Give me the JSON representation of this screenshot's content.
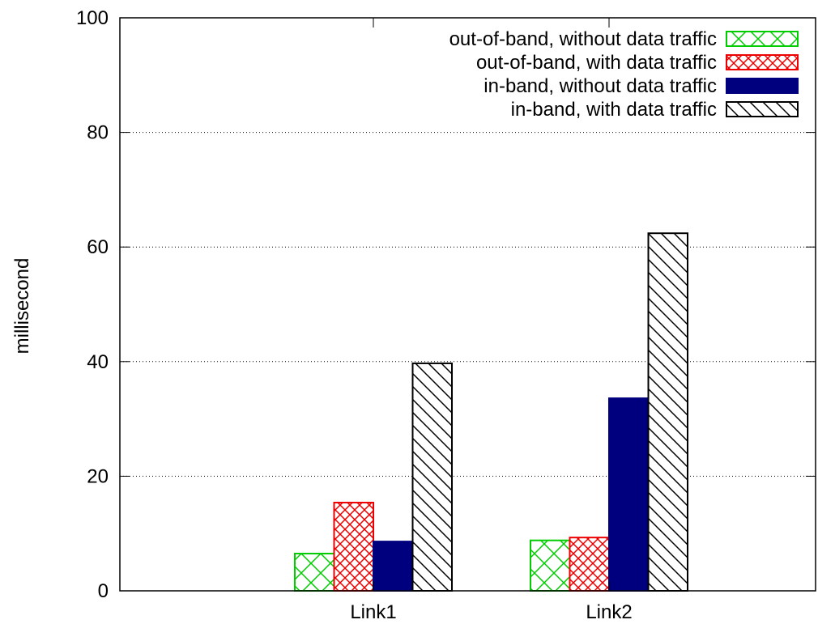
{
  "chart_data": {
    "type": "bar",
    "title": "",
    "xlabel": "",
    "ylabel": "millisecond",
    "ylim": [
      0,
      100
    ],
    "yticks": [
      0,
      20,
      40,
      60,
      80,
      100
    ],
    "grid": "horizontal dotted",
    "legend_position": "top-right",
    "categories": [
      "Link1",
      "Link2"
    ],
    "series": [
      {
        "name": "out-of-band, without data traffic",
        "values": [
          6.5,
          8.8
        ],
        "color": "#00cc00",
        "pattern": "crosshatch"
      },
      {
        "name": "out-of-band, with data traffic",
        "values": [
          15.4,
          9.3
        ],
        "color": "#ee0000",
        "pattern": "dense-crosshatch"
      },
      {
        "name": "in-band, without data traffic",
        "values": [
          8.6,
          33.6
        ],
        "color": "#00007f",
        "pattern": "solid"
      },
      {
        "name": "in-band, with data traffic",
        "values": [
          39.7,
          62.4
        ],
        "color": "#000000",
        "pattern": "diagonal"
      }
    ]
  }
}
